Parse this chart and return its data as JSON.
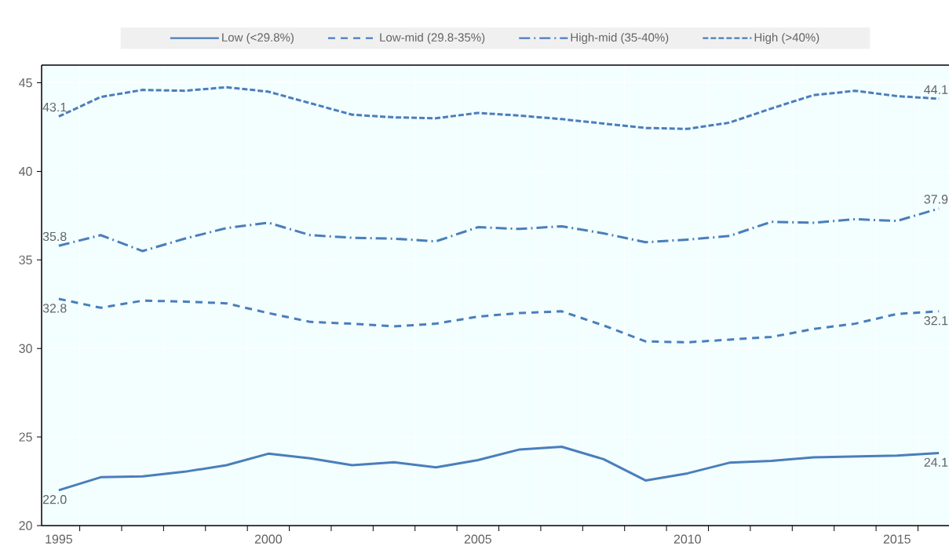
{
  "chart_data": {
    "type": "line",
    "categories": [
      "1995",
      null,
      null,
      null,
      null,
      "2000",
      null,
      null,
      null,
      null,
      "2005",
      null,
      null,
      null,
      null,
      "2010",
      null,
      null,
      null,
      null,
      "2015",
      null
    ],
    "series": [
      {
        "name": "Low (<29.8%)",
        "color": "#4a7ebb",
        "line_style": "solid",
        "values": [
          22.0,
          22.73,
          22.78,
          23.04,
          23.41,
          24.06,
          23.8,
          23.41,
          23.58,
          23.29,
          23.7,
          24.3,
          24.45,
          23.75,
          22.55,
          22.95,
          23.55,
          23.65,
          23.85,
          23.9,
          23.95,
          24.1
        ],
        "value_labels": [
          "22.0",
          null,
          null,
          null,
          null,
          null,
          null,
          null,
          null,
          null,
          null,
          null,
          null,
          null,
          null,
          null,
          null,
          null,
          null,
          null,
          null,
          "24.1"
        ]
      },
      {
        "name": "Low-mid (29.8-35%)",
        "color": "#4a7ebb",
        "line_style": "dashed",
        "values": [
          32.8,
          32.3,
          32.7,
          32.65,
          32.55,
          32.0,
          31.5,
          31.4,
          31.25,
          31.4,
          31.8,
          32.0,
          32.1,
          31.3,
          30.4,
          30.35,
          30.5,
          30.65,
          31.1,
          31.4,
          31.95,
          32.1
        ],
        "value_labels": [
          "32.8",
          null,
          null,
          null,
          null,
          null,
          null,
          null,
          null,
          null,
          null,
          null,
          null,
          null,
          null,
          null,
          null,
          null,
          null,
          null,
          null,
          "32.1"
        ]
      },
      {
        "name": "High-mid (35-40%)",
        "color": "#4a7ebb",
        "line_style": "dashdot",
        "values": [
          35.8,
          36.4,
          35.5,
          36.2,
          36.8,
          37.1,
          36.4,
          36.25,
          36.2,
          36.05,
          36.85,
          36.75,
          36.9,
          36.5,
          36.0,
          36.15,
          36.35,
          37.15,
          37.1,
          37.3,
          37.2,
          37.9
        ],
        "value_labels": [
          "35.8",
          null,
          null,
          null,
          null,
          null,
          null,
          null,
          null,
          null,
          null,
          null,
          null,
          null,
          null,
          null,
          null,
          null,
          null,
          null,
          null,
          "37.9"
        ]
      },
      {
        "name": "High (>40%)",
        "color": "#4a7ebb",
        "line_style": "dotted",
        "values": [
          43.1,
          44.2,
          44.6,
          44.55,
          44.75,
          44.5,
          43.85,
          43.2,
          43.05,
          43.0,
          43.3,
          43.15,
          42.95,
          42.7,
          42.45,
          42.4,
          42.75,
          43.55,
          44.3,
          44.55,
          44.25,
          44.1
        ],
        "value_labels": [
          "43.1",
          null,
          null,
          null,
          null,
          null,
          null,
          null,
          null,
          null,
          null,
          null,
          null,
          null,
          null,
          null,
          null,
          null,
          null,
          null,
          null,
          "44.1"
        ]
      }
    ],
    "ylim": [
      20,
      46
    ],
    "yticks": [
      20,
      25,
      30,
      35,
      40,
      45
    ],
    "grid": true,
    "legend": "top",
    "marker": "none"
  }
}
